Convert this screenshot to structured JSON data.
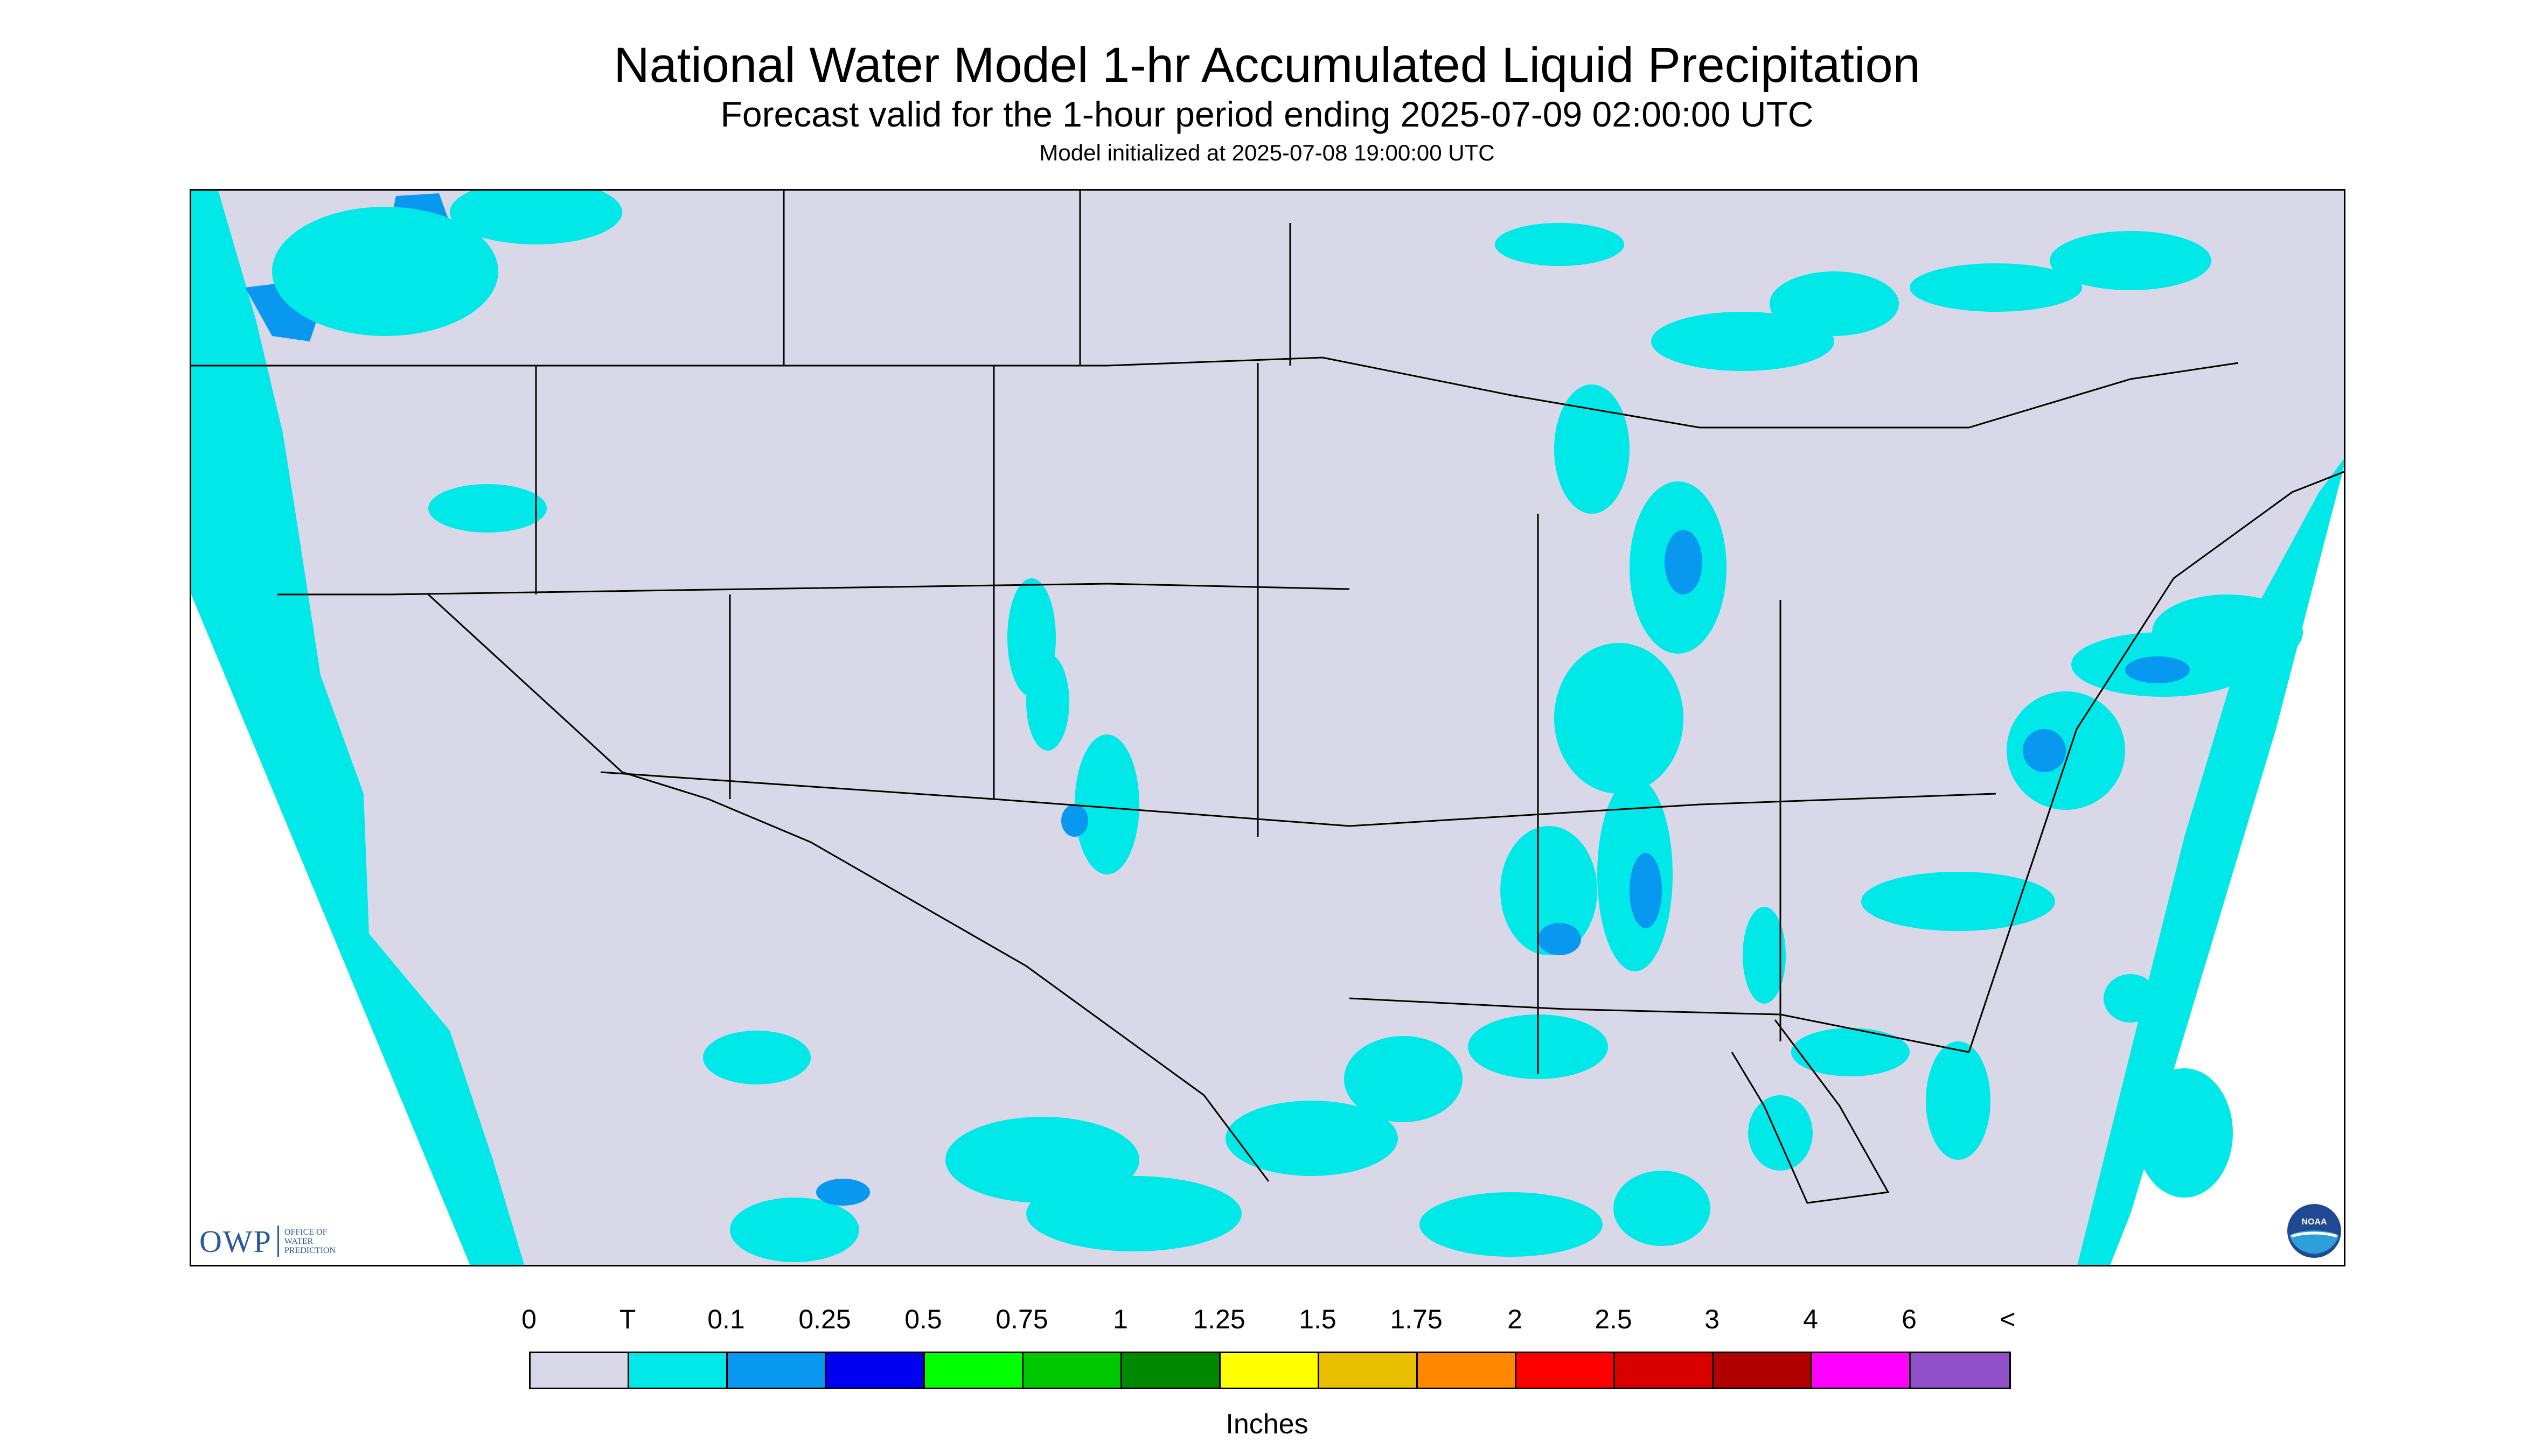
{
  "header": {
    "title": "National Water Model 1-hr Accumulated Liquid Precipitation",
    "subtitle": "Forecast valid for the 1-hour period ending 2025-07-09 02:00:00 UTC",
    "init": "Model initialized at 2025-07-08 19:00:00 UTC"
  },
  "logos": {
    "owp_mark": "OWP",
    "owp_text": "OFFICE OF\nWATER\nPREDICTION",
    "noaa_text": "NOAA"
  },
  "legend": {
    "labels": [
      "0",
      "T",
      "0.1",
      "0.25",
      "0.5",
      "0.75",
      "1",
      "1.25",
      "1.5",
      "1.75",
      "2",
      "2.5",
      "3",
      "4",
      "6",
      "<"
    ],
    "colors": [
      "#d8d8e9",
      "#00e8e8",
      "#0898f0",
      "#0000f0",
      "#00ff00",
      "#00c800",
      "#008800",
      "#ffff00",
      "#e8c000",
      "#ff8800",
      "#ff0000",
      "#d80000",
      "#b00000",
      "#ff00ff",
      "#9050c8"
    ],
    "units": "Inches"
  },
  "map": {
    "background_color": "#d8d8e9",
    "precip_color": "#00e8e8",
    "heavy_color": "#0898f0",
    "border_color": "#000000"
  }
}
